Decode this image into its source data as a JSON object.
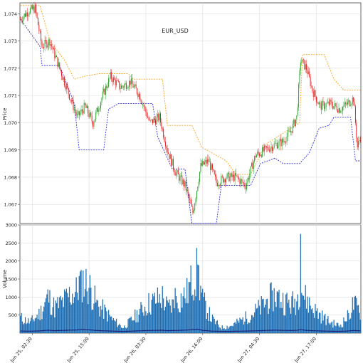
{
  "chart_data": [
    {
      "type": "candlestick",
      "title": "EUR_USD",
      "ylabel": "Price",
      "ylim": [
        1.0663,
        1.0744
      ],
      "yticks": [
        "1.067",
        "1.068",
        "1.069",
        "1.070",
        "1.071",
        "1.072",
        "1.073",
        "1.074"
      ],
      "grid": true,
      "colors": {
        "up": "#2ca02c",
        "down": "#e31a1c",
        "upper_band": "#f5a623",
        "lower_band": "#2b2be0"
      },
      "key_points": [
        {
          "t": 0,
          "close": 1.0738
        },
        {
          "t": 8,
          "close": 1.0741
        },
        {
          "t": 15,
          "close": 1.0742
        },
        {
          "t": 22,
          "close": 1.0728
        },
        {
          "t": 30,
          "close": 1.073
        },
        {
          "t": 38,
          "close": 1.0722
        },
        {
          "t": 48,
          "close": 1.0712
        },
        {
          "t": 58,
          "close": 1.0702
        },
        {
          "t": 66,
          "close": 1.0706
        },
        {
          "t": 74,
          "close": 1.07
        },
        {
          "t": 84,
          "close": 1.071
        },
        {
          "t": 92,
          "close": 1.0717
        },
        {
          "t": 102,
          "close": 1.0713
        },
        {
          "t": 112,
          "close": 1.0715
        },
        {
          "t": 122,
          "close": 1.071
        },
        {
          "t": 132,
          "close": 1.07
        },
        {
          "t": 142,
          "close": 1.0702
        },
        {
          "t": 150,
          "close": 1.069
        },
        {
          "t": 158,
          "close": 1.0682
        },
        {
          "t": 168,
          "close": 1.0677
        },
        {
          "t": 176,
          "close": 1.0667
        },
        {
          "t": 184,
          "close": 1.0684
        },
        {
          "t": 192,
          "close": 1.0686
        },
        {
          "t": 200,
          "close": 1.0678
        },
        {
          "t": 210,
          "close": 1.068
        },
        {
          "t": 220,
          "close": 1.068
        },
        {
          "t": 230,
          "close": 1.0677
        },
        {
          "t": 240,
          "close": 1.0688
        },
        {
          "t": 250,
          "close": 1.069
        },
        {
          "t": 260,
          "close": 1.0692
        },
        {
          "t": 268,
          "close": 1.0693
        },
        {
          "t": 276,
          "close": 1.0697
        },
        {
          "t": 282,
          "close": 1.0702
        },
        {
          "t": 286,
          "close": 1.0723
        },
        {
          "t": 292,
          "close": 1.072
        },
        {
          "t": 298,
          "close": 1.0712
        },
        {
          "t": 306,
          "close": 1.0706
        },
        {
          "t": 316,
          "close": 1.0707
        },
        {
          "t": 326,
          "close": 1.0705
        },
        {
          "t": 334,
          "close": 1.0707
        },
        {
          "t": 340,
          "close": 1.0709
        },
        {
          "t": 344,
          "close": 1.0691
        },
        {
          "t": 347,
          "close": 1.0695
        }
      ],
      "band_upper": [
        {
          "t": 0,
          "v": 1.0743
        },
        {
          "t": 20,
          "v": 1.0743
        },
        {
          "t": 30,
          "v": 1.073
        },
        {
          "t": 45,
          "v": 1.0723
        },
        {
          "t": 55,
          "v": 1.0716
        },
        {
          "t": 65,
          "v": 1.0717
        },
        {
          "t": 80,
          "v": 1.0718
        },
        {
          "t": 110,
          "v": 1.0718
        },
        {
          "t": 115,
          "v": 1.0716
        },
        {
          "t": 145,
          "v": 1.0716
        },
        {
          "t": 150,
          "v": 1.0699
        },
        {
          "t": 175,
          "v": 1.0699
        },
        {
          "t": 185,
          "v": 1.0691
        },
        {
          "t": 210,
          "v": 1.0686
        },
        {
          "t": 220,
          "v": 1.0681
        },
        {
          "t": 235,
          "v": 1.0681
        },
        {
          "t": 250,
          "v": 1.0692
        },
        {
          "t": 285,
          "v": 1.07
        },
        {
          "t": 288,
          "v": 1.0725
        },
        {
          "t": 310,
          "v": 1.0725
        },
        {
          "t": 320,
          "v": 1.0716
        },
        {
          "t": 330,
          "v": 1.0712
        },
        {
          "t": 347,
          "v": 1.0712
        }
      ],
      "band_lower": [
        {
          "t": 0,
          "v": 1.0738
        },
        {
          "t": 20,
          "v": 1.0728
        },
        {
          "t": 22,
          "v": 1.0721
        },
        {
          "t": 40,
          "v": 1.0721
        },
        {
          "t": 55,
          "v": 1.0707
        },
        {
          "t": 60,
          "v": 1.069
        },
        {
          "t": 85,
          "v": 1.069
        },
        {
          "t": 90,
          "v": 1.0705
        },
        {
          "t": 100,
          "v": 1.0707
        },
        {
          "t": 135,
          "v": 1.0707
        },
        {
          "t": 140,
          "v": 1.0695
        },
        {
          "t": 155,
          "v": 1.0683
        },
        {
          "t": 168,
          "v": 1.0683
        },
        {
          "t": 175,
          "v": 1.0663
        },
        {
          "t": 200,
          "v": 1.0663
        },
        {
          "t": 205,
          "v": 1.0677
        },
        {
          "t": 235,
          "v": 1.0677
        },
        {
          "t": 245,
          "v": 1.0685
        },
        {
          "t": 260,
          "v": 1.0687
        },
        {
          "t": 268,
          "v": 1.0685
        },
        {
          "t": 285,
          "v": 1.0685
        },
        {
          "t": 295,
          "v": 1.0689
        },
        {
          "t": 305,
          "v": 1.0698
        },
        {
          "t": 315,
          "v": 1.0699
        },
        {
          "t": 320,
          "v": 1.0702
        },
        {
          "t": 337,
          "v": 1.0702
        },
        {
          "t": 342,
          "v": 1.0686
        },
        {
          "t": 347,
          "v": 1.0686
        }
      ]
    },
    {
      "type": "bar",
      "ylabel": "Volume",
      "ylim": [
        0,
        3000
      ],
      "yticks": [
        "500",
        "1000",
        "1500",
        "2000",
        "2500",
        "3000"
      ],
      "grid": true,
      "colors": {
        "bars": "#1f6fb4",
        "average": "#1a237e"
      },
      "x_tick_labels": [
        "Jun 25, 02:30",
        "Jun 25, 15:00",
        "Jun 26, 03:30",
        "Jun 26, 16:00",
        "Jun 27, 04:30",
        "Jun 27, 17:00"
      ],
      "x_tick_positions": [
        10,
        58,
        106,
        154,
        202,
        250
      ],
      "n_bars": 348,
      "volume_key_points": [
        {
          "t": 0,
          "v": 420
        },
        {
          "t": 10,
          "v": 300
        },
        {
          "t": 20,
          "v": 550
        },
        {
          "t": 28,
          "v": 1000
        },
        {
          "t": 35,
          "v": 700
        },
        {
          "t": 45,
          "v": 900
        },
        {
          "t": 50,
          "v": 1050
        },
        {
          "t": 57,
          "v": 1150
        },
        {
          "t": 62,
          "v": 1500
        },
        {
          "t": 70,
          "v": 1300
        },
        {
          "t": 78,
          "v": 800
        },
        {
          "t": 86,
          "v": 600
        },
        {
          "t": 95,
          "v": 350
        },
        {
          "t": 105,
          "v": 150
        },
        {
          "t": 115,
          "v": 400
        },
        {
          "t": 122,
          "v": 600
        },
        {
          "t": 130,
          "v": 800
        },
        {
          "t": 138,
          "v": 900
        },
        {
          "t": 145,
          "v": 1000
        },
        {
          "t": 150,
          "v": 700
        },
        {
          "t": 160,
          "v": 850
        },
        {
          "t": 170,
          "v": 1100
        },
        {
          "t": 176,
          "v": 1500
        },
        {
          "t": 181,
          "v": 1700
        },
        {
          "t": 186,
          "v": 900
        },
        {
          "t": 195,
          "v": 400
        },
        {
          "t": 205,
          "v": 150
        },
        {
          "t": 215,
          "v": 200
        },
        {
          "t": 225,
          "v": 350
        },
        {
          "t": 235,
          "v": 500
        },
        {
          "t": 245,
          "v": 700
        },
        {
          "t": 252,
          "v": 900
        },
        {
          "t": 260,
          "v": 1050
        },
        {
          "t": 268,
          "v": 900
        },
        {
          "t": 276,
          "v": 800
        },
        {
          "t": 282,
          "v": 900
        },
        {
          "t": 286,
          "v": 1400
        },
        {
          "t": 290,
          "v": 1000
        },
        {
          "t": 298,
          "v": 700
        },
        {
          "t": 306,
          "v": 500
        },
        {
          "t": 316,
          "v": 300
        },
        {
          "t": 326,
          "v": 200
        },
        {
          "t": 334,
          "v": 450
        },
        {
          "t": 340,
          "v": 800
        },
        {
          "t": 347,
          "v": 600
        }
      ],
      "spikes": [
        {
          "t": 62,
          "v": 1750
        },
        {
          "t": 158,
          "v": 1250
        },
        {
          "t": 181,
          "v": 1900
        },
        {
          "t": 257,
          "v": 1180
        },
        {
          "t": 286,
          "v": 2750
        }
      ]
    }
  ]
}
